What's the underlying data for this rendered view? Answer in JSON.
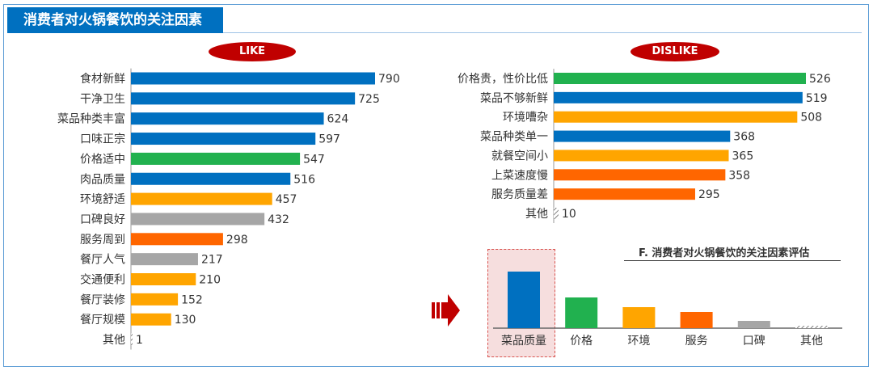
{
  "header": {
    "title": "消费者对火锅餐饮的关注因素"
  },
  "like_label": "LIKE",
  "dislike_label": "DISLIKE",
  "colors": {
    "blue": "#0070c0",
    "green": "#21b14f",
    "orange": "#ffa500",
    "red_orange": "#ff6600",
    "gray": "#a6a6a6",
    "accent_red": "#c00000"
  },
  "chart_data": [
    {
      "type": "bar",
      "orientation": "horizontal",
      "name": "LIKE",
      "categories": [
        "食材新鲜",
        "干净卫生",
        "菜品种类丰富",
        "口味正宗",
        "价格适中",
        "肉品质量",
        "环境舒适",
        "口碑良好",
        "服务周到",
        "餐厅人气",
        "交通便利",
        "餐厅装修",
        "餐厅规模",
        "其他"
      ],
      "values": [
        790,
        725,
        624,
        597,
        547,
        516,
        457,
        432,
        298,
        217,
        210,
        152,
        130,
        1
      ],
      "colors": [
        "blue",
        "blue",
        "blue",
        "blue",
        "green",
        "blue",
        "orange",
        "gray",
        "red_orange",
        "gray",
        "orange",
        "orange",
        "orange",
        "hatch"
      ],
      "xlim": [
        0,
        790
      ]
    },
    {
      "type": "bar",
      "orientation": "horizontal",
      "name": "DISLIKE",
      "categories": [
        "价格贵，性价比低",
        "菜品不够新鲜",
        "环境嘈杂",
        "菜品种类单一",
        "就餐空间小",
        "上菜速度慢",
        "服务质量差",
        "其他"
      ],
      "values": [
        526,
        519,
        508,
        368,
        365,
        358,
        295,
        10
      ],
      "colors": [
        "green",
        "blue",
        "orange",
        "blue",
        "orange",
        "red_orange",
        "red_orange",
        "hatch"
      ],
      "xlim": [
        0,
        526
      ]
    },
    {
      "type": "bar",
      "orientation": "vertical",
      "title": "F. 消费者对火锅餐饮的关注因素评估",
      "categories": [
        "菜品质量",
        "价格",
        "环境",
        "服务",
        "口碑",
        "其他"
      ],
      "colors": [
        "blue",
        "green",
        "orange",
        "red_orange",
        "gray",
        "hatch"
      ],
      "values": [
        70,
        38,
        26,
        20,
        9,
        3
      ],
      "highlighted": "菜品质量"
    }
  ]
}
